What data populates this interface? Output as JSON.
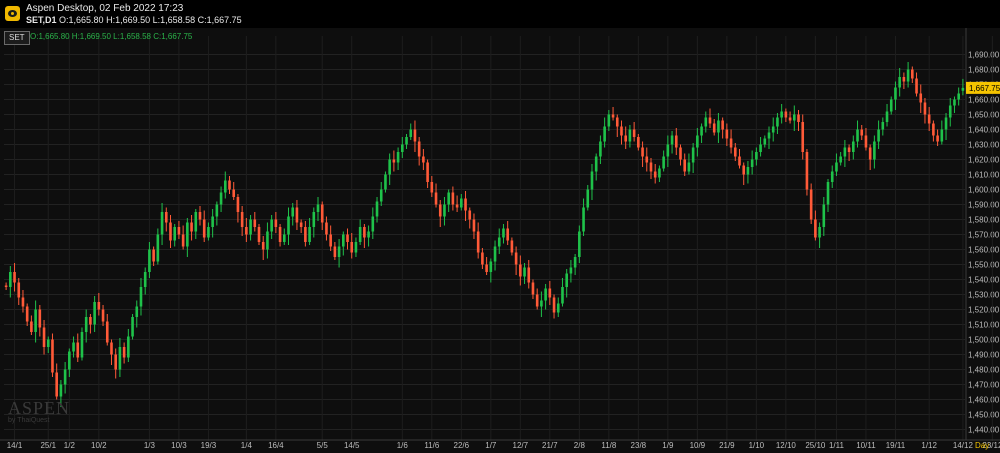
{
  "window": {
    "title": "Aspen Desktop, 02 Feb 2022 17:23",
    "symbol": "SET,D1",
    "quote": "O:1,665.80 H:1,669.50 L:1,658.58 C:1,667.75"
  },
  "chart": {
    "symbol_tag": "SET",
    "ohlc_legend": "O:1,665.80 H:1,669.50 L:1,658.58 C:1,667.75",
    "last_price_label": "1,667.75",
    "period_label": "Day",
    "watermark_brand": "ASPEN",
    "watermark_sub": "by ThaiQuest"
  },
  "colors": {
    "up": "#1fc24a",
    "down": "#ff5a38",
    "last_price_badge": "#f5c400",
    "ohlc_text": "#2bb34a"
  },
  "chart_data": {
    "type": "candlestick",
    "ylim": [
      1435,
      1697
    ],
    "ytick_values": [
      1440,
      1450,
      1460,
      1470,
      1480,
      1490,
      1500,
      1510,
      1520,
      1530,
      1540,
      1550,
      1560,
      1570,
      1580,
      1590,
      1600,
      1610,
      1620,
      1630,
      1640,
      1650,
      1660,
      1670,
      1680,
      1690
    ],
    "ytick_labels": [
      "1,440.00",
      "1,450.00",
      "1,460.00",
      "1,470.00",
      "1,480.00",
      "1,490.00",
      "1,500.00",
      "1,510.00",
      "1,520.00",
      "1,530.00",
      "1,540.00",
      "1,550.00",
      "1,560.00",
      "1,570.00",
      "1,580.00",
      "1,590.00",
      "1,600.00",
      "1,610.00",
      "1,620.00",
      "1,630.00",
      "1,640.00",
      "1,650.00",
      "1,660.00",
      "1,670.00",
      "1,680.00",
      "1,690.00"
    ],
    "xticks": [
      {
        "label": "14/1",
        "i": 2
      },
      {
        "label": "25/1",
        "i": 10
      },
      {
        "label": "1/2",
        "i": 15
      },
      {
        "label": "10/2",
        "i": 22
      },
      {
        "label": "1/3",
        "i": 34
      },
      {
        "label": "10/3",
        "i": 41
      },
      {
        "label": "19/3",
        "i": 48
      },
      {
        "label": "1/4",
        "i": 57
      },
      {
        "label": "16/4",
        "i": 64
      },
      {
        "label": "5/5",
        "i": 75
      },
      {
        "label": "14/5",
        "i": 82
      },
      {
        "label": "1/6",
        "i": 94
      },
      {
        "label": "11/6",
        "i": 101
      },
      {
        "label": "22/6",
        "i": 108
      },
      {
        "label": "1/7",
        "i": 115
      },
      {
        "label": "12/7",
        "i": 122
      },
      {
        "label": "21/7",
        "i": 129
      },
      {
        "label": "2/8",
        "i": 136
      },
      {
        "label": "11/8",
        "i": 143
      },
      {
        "label": "23/8",
        "i": 150
      },
      {
        "label": "1/9",
        "i": 157
      },
      {
        "label": "10/9",
        "i": 164
      },
      {
        "label": "21/9",
        "i": 171
      },
      {
        "label": "1/10",
        "i": 178
      },
      {
        "label": "12/10",
        "i": 185
      },
      {
        "label": "25/10",
        "i": 192
      },
      {
        "label": "1/11",
        "i": 197
      },
      {
        "label": "10/11",
        "i": 204
      },
      {
        "label": "19/11",
        "i": 211
      },
      {
        "label": "1/12",
        "i": 219
      },
      {
        "label": "14/12",
        "i": 227
      },
      {
        "label": "23/12",
        "i": 234
      },
      {
        "label": "2022",
        "i": 240
      },
      {
        "label": "18/1",
        "i": 249
      }
    ],
    "close": [
      1535,
      1545,
      1538,
      1528,
      1522,
      1512,
      1505,
      1520,
      1508,
      1495,
      1500,
      1478,
      1462,
      1470,
      1480,
      1492,
      1498,
      1488,
      1505,
      1515,
      1510,
      1525,
      1520,
      1512,
      1498,
      1490,
      1480,
      1495,
      1488,
      1502,
      1515,
      1522,
      1535,
      1545,
      1560,
      1552,
      1570,
      1585,
      1578,
      1566,
      1575,
      1570,
      1562,
      1578,
      1572,
      1585,
      1580,
      1568,
      1575,
      1582,
      1590,
      1598,
      1606,
      1600,
      1595,
      1585,
      1575,
      1570,
      1580,
      1575,
      1565,
      1560,
      1572,
      1580,
      1575,
      1565,
      1570,
      1582,
      1588,
      1578,
      1575,
      1565,
      1575,
      1585,
      1590,
      1578,
      1570,
      1562,
      1555,
      1562,
      1570,
      1565,
      1558,
      1565,
      1575,
      1568,
      1572,
      1582,
      1592,
      1600,
      1610,
      1620,
      1618,
      1625,
      1630,
      1635,
      1640,
      1632,
      1622,
      1618,
      1605,
      1598,
      1590,
      1582,
      1590,
      1598,
      1590,
      1588,
      1594,
      1586,
      1580,
      1572,
      1558,
      1550,
      1545,
      1552,
      1562,
      1568,
      1574,
      1566,
      1558,
      1550,
      1542,
      1548,
      1538,
      1530,
      1522,
      1526,
      1534,
      1528,
      1518,
      1524,
      1535,
      1544,
      1548,
      1555,
      1572,
      1588,
      1600,
      1612,
      1622,
      1632,
      1642,
      1650,
      1648,
      1642,
      1636,
      1632,
      1640,
      1635,
      1628,
      1622,
      1618,
      1612,
      1608,
      1614,
      1622,
      1630,
      1636,
      1628,
      1620,
      1612,
      1618,
      1628,
      1636,
      1642,
      1648,
      1644,
      1638,
      1646,
      1640,
      1634,
      1628,
      1622,
      1616,
      1610,
      1615,
      1620,
      1625,
      1630,
      1634,
      1638,
      1642,
      1648,
      1652,
      1648,
      1646,
      1650,
      1645,
      1625,
      1600,
      1580,
      1568,
      1575,
      1590,
      1605,
      1612,
      1618,
      1622,
      1628,
      1625,
      1632,
      1640,
      1636,
      1628,
      1620,
      1632,
      1640,
      1645,
      1652,
      1660,
      1668,
      1675,
      1672,
      1680,
      1674,
      1664,
      1658,
      1650,
      1644,
      1636,
      1632,
      1640,
      1648,
      1656,
      1660,
      1664,
      1667.75
    ],
    "open": [
      1536,
      1535,
      1545,
      1538,
      1528,
      1522,
      1512,
      1505,
      1520,
      1508,
      1495,
      1500,
      1478,
      1462,
      1470,
      1480,
      1492,
      1498,
      1488,
      1505,
      1515,
      1510,
      1525,
      1520,
      1512,
      1498,
      1490,
      1480,
      1495,
      1488,
      1502,
      1515,
      1522,
      1535,
      1545,
      1560,
      1552,
      1570,
      1585,
      1578,
      1566,
      1575,
      1570,
      1562,
      1578,
      1572,
      1585,
      1580,
      1568,
      1575,
      1582,
      1590,
      1598,
      1606,
      1600,
      1595,
      1585,
      1575,
      1570,
      1580,
      1575,
      1565,
      1560,
      1572,
      1580,
      1575,
      1565,
      1570,
      1582,
      1588,
      1578,
      1575,
      1565,
      1575,
      1585,
      1590,
      1578,
      1570,
      1562,
      1555,
      1562,
      1570,
      1565,
      1558,
      1565,
      1575,
      1568,
      1572,
      1582,
      1592,
      1600,
      1610,
      1620,
      1618,
      1625,
      1630,
      1635,
      1640,
      1632,
      1622,
      1618,
      1605,
      1598,
      1590,
      1582,
      1590,
      1598,
      1590,
      1588,
      1594,
      1586,
      1580,
      1572,
      1558,
      1550,
      1545,
      1552,
      1562,
      1568,
      1574,
      1566,
      1558,
      1550,
      1542,
      1548,
      1538,
      1530,
      1522,
      1526,
      1534,
      1528,
      1518,
      1524,
      1535,
      1544,
      1548,
      1555,
      1572,
      1588,
      1600,
      1612,
      1622,
      1632,
      1642,
      1650,
      1648,
      1642,
      1636,
      1632,
      1640,
      1635,
      1628,
      1622,
      1618,
      1612,
      1608,
      1614,
      1622,
      1630,
      1636,
      1628,
      1620,
      1612,
      1618,
      1628,
      1636,
      1642,
      1648,
      1644,
      1638,
      1646,
      1640,
      1634,
      1628,
      1622,
      1616,
      1610,
      1615,
      1620,
      1625,
      1630,
      1634,
      1638,
      1642,
      1648,
      1652,
      1648,
      1646,
      1650,
      1645,
      1625,
      1600,
      1580,
      1568,
      1575,
      1590,
      1605,
      1612,
      1618,
      1622,
      1628,
      1625,
      1632,
      1640,
      1636,
      1628,
      1620,
      1632,
      1640,
      1645,
      1652,
      1660,
      1668,
      1675,
      1672,
      1680,
      1674,
      1664,
      1658,
      1650,
      1644,
      1636,
      1632,
      1640,
      1648,
      1656,
      1660,
      1665.8
    ]
  }
}
